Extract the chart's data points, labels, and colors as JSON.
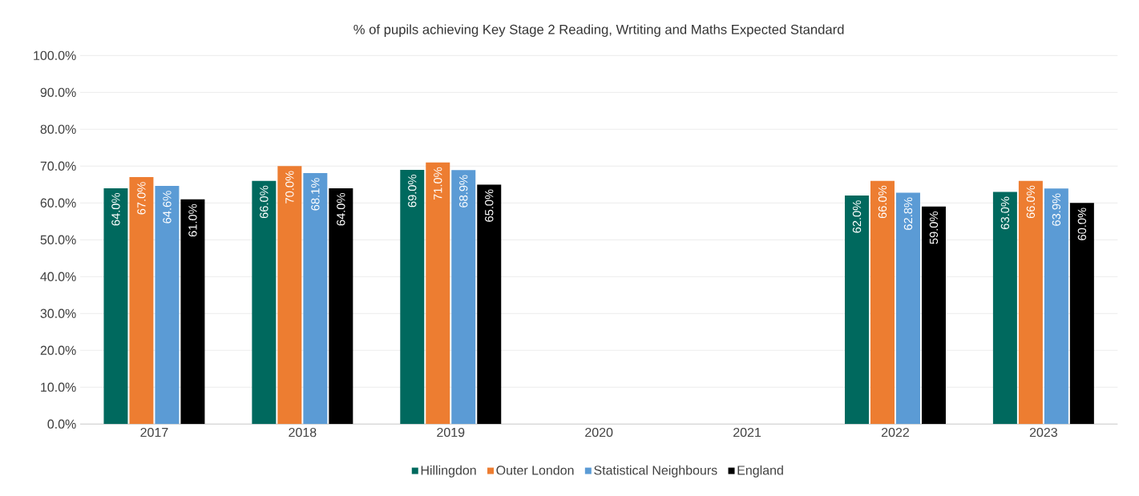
{
  "chart_data": {
    "type": "bar",
    "title": "% of pupils achieving Key Stage 2 Reading, Wrtiting and Maths Expected Standard",
    "categories": [
      "2017",
      "2018",
      "2019",
      "2020",
      "2021",
      "2022",
      "2023"
    ],
    "series": [
      {
        "name": "Hillingdon",
        "color": "#00695e",
        "values": [
          64,
          66,
          69,
          null,
          null,
          62,
          63
        ],
        "value_labels": [
          "64.0%",
          "66.0%",
          "69.0%",
          null,
          null,
          "62.0%",
          "63.0%"
        ]
      },
      {
        "name": "Outer London",
        "color": "#ed7d31",
        "values": [
          67,
          70,
          71,
          null,
          null,
          66,
          66
        ],
        "value_labels": [
          "67.0%",
          "70.0%",
          "71.0%",
          null,
          null,
          "66.0%",
          "66.0%"
        ]
      },
      {
        "name": "Statistical Neighbours",
        "color": "#5b9bd5",
        "values": [
          64.6,
          68.1,
          68.9,
          null,
          null,
          62.8,
          63.9
        ],
        "value_labels": [
          "64.6%",
          "68.1%",
          "68.9%",
          null,
          null,
          "62.8%",
          "63.9%"
        ]
      },
      {
        "name": "England",
        "color": "#000000",
        "values": [
          61,
          64,
          65,
          null,
          null,
          59,
          60
        ],
        "value_labels": [
          "61.0%",
          "64.0%",
          "65.0%",
          null,
          null,
          "59.0%",
          "60.0%"
        ]
      }
    ],
    "ylim": [
      0,
      100
    ],
    "yticks": [
      {
        "value": 0,
        "label": "0.0%"
      },
      {
        "value": 10,
        "label": "10.0%"
      },
      {
        "value": 20,
        "label": "20.0%"
      },
      {
        "value": 30,
        "label": "30.0%"
      },
      {
        "value": 40,
        "label": "40.0%"
      },
      {
        "value": 50,
        "label": "50.0%"
      },
      {
        "value": 60,
        "label": "60.0%"
      },
      {
        "value": 70,
        "label": "70.0%"
      },
      {
        "value": 80,
        "label": "80.0%"
      },
      {
        "value": 90,
        "label": "90.0%"
      },
      {
        "value": 100,
        "label": "100.0%"
      }
    ],
    "grid": "y",
    "legend": "bottom"
  }
}
